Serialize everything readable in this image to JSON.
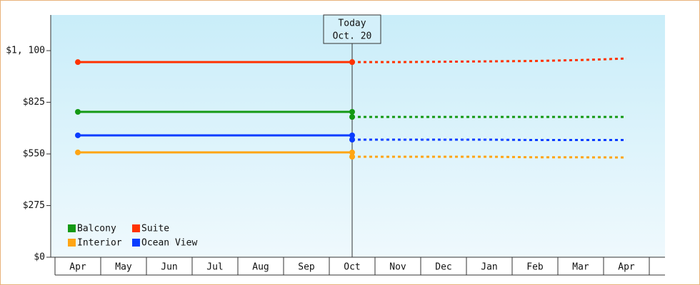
{
  "chart_data": {
    "type": "line",
    "categories": [
      "Apr",
      "May",
      "Jun",
      "Jul",
      "Aug",
      "Sep",
      "Oct",
      "Nov",
      "Dec",
      "Jan",
      "Feb",
      "Mar",
      "Apr"
    ],
    "annotation": {
      "lines": [
        "Today",
        "Oct. 20"
      ],
      "index": 6
    },
    "ylim": [
      0,
      1290
    ],
    "yticks": [
      {
        "value": 0,
        "label": "$0"
      },
      {
        "value": 275,
        "label": "$275"
      },
      {
        "value": 550,
        "label": "$550"
      },
      {
        "value": 825,
        "label": "$825"
      },
      {
        "value": 1100,
        "label": "$1, 100"
      }
    ],
    "legend": "bottom-left",
    "series": [
      {
        "name": "Balcony",
        "color": "#149914",
        "values": [
          774,
          774,
          774,
          774,
          774,
          774,
          774,
          null,
          null,
          null,
          null,
          null,
          null
        ],
        "forecast": [
          null,
          null,
          null,
          null,
          null,
          null,
          747,
          747,
          747,
          747,
          747,
          747,
          747
        ]
      },
      {
        "name": "Suite",
        "color": "#ff3300",
        "values": [
          1039,
          1039,
          1039,
          1039,
          1039,
          1039,
          1039,
          null,
          null,
          null,
          null,
          null,
          null
        ],
        "forecast": [
          null,
          null,
          null,
          null,
          null,
          null,
          1039,
          1039,
          1041,
          1043,
          1045,
          1050,
          1058
        ]
      },
      {
        "name": "Interior",
        "color": "#ffa514",
        "values": [
          558,
          558,
          558,
          558,
          558,
          558,
          558,
          null,
          null,
          null,
          null,
          null,
          null
        ],
        "forecast": [
          null,
          null,
          null,
          null,
          null,
          null,
          535,
          535,
          535,
          535,
          532,
          532,
          531
        ]
      },
      {
        "name": "Ocean View",
        "color": "#0a3cff",
        "values": [
          649,
          649,
          649,
          649,
          649,
          649,
          649,
          null,
          null,
          null,
          null,
          null,
          null
        ],
        "forecast": [
          null,
          null,
          null,
          null,
          null,
          null,
          626,
          626,
          626,
          626,
          624,
          624,
          624
        ]
      }
    ]
  }
}
